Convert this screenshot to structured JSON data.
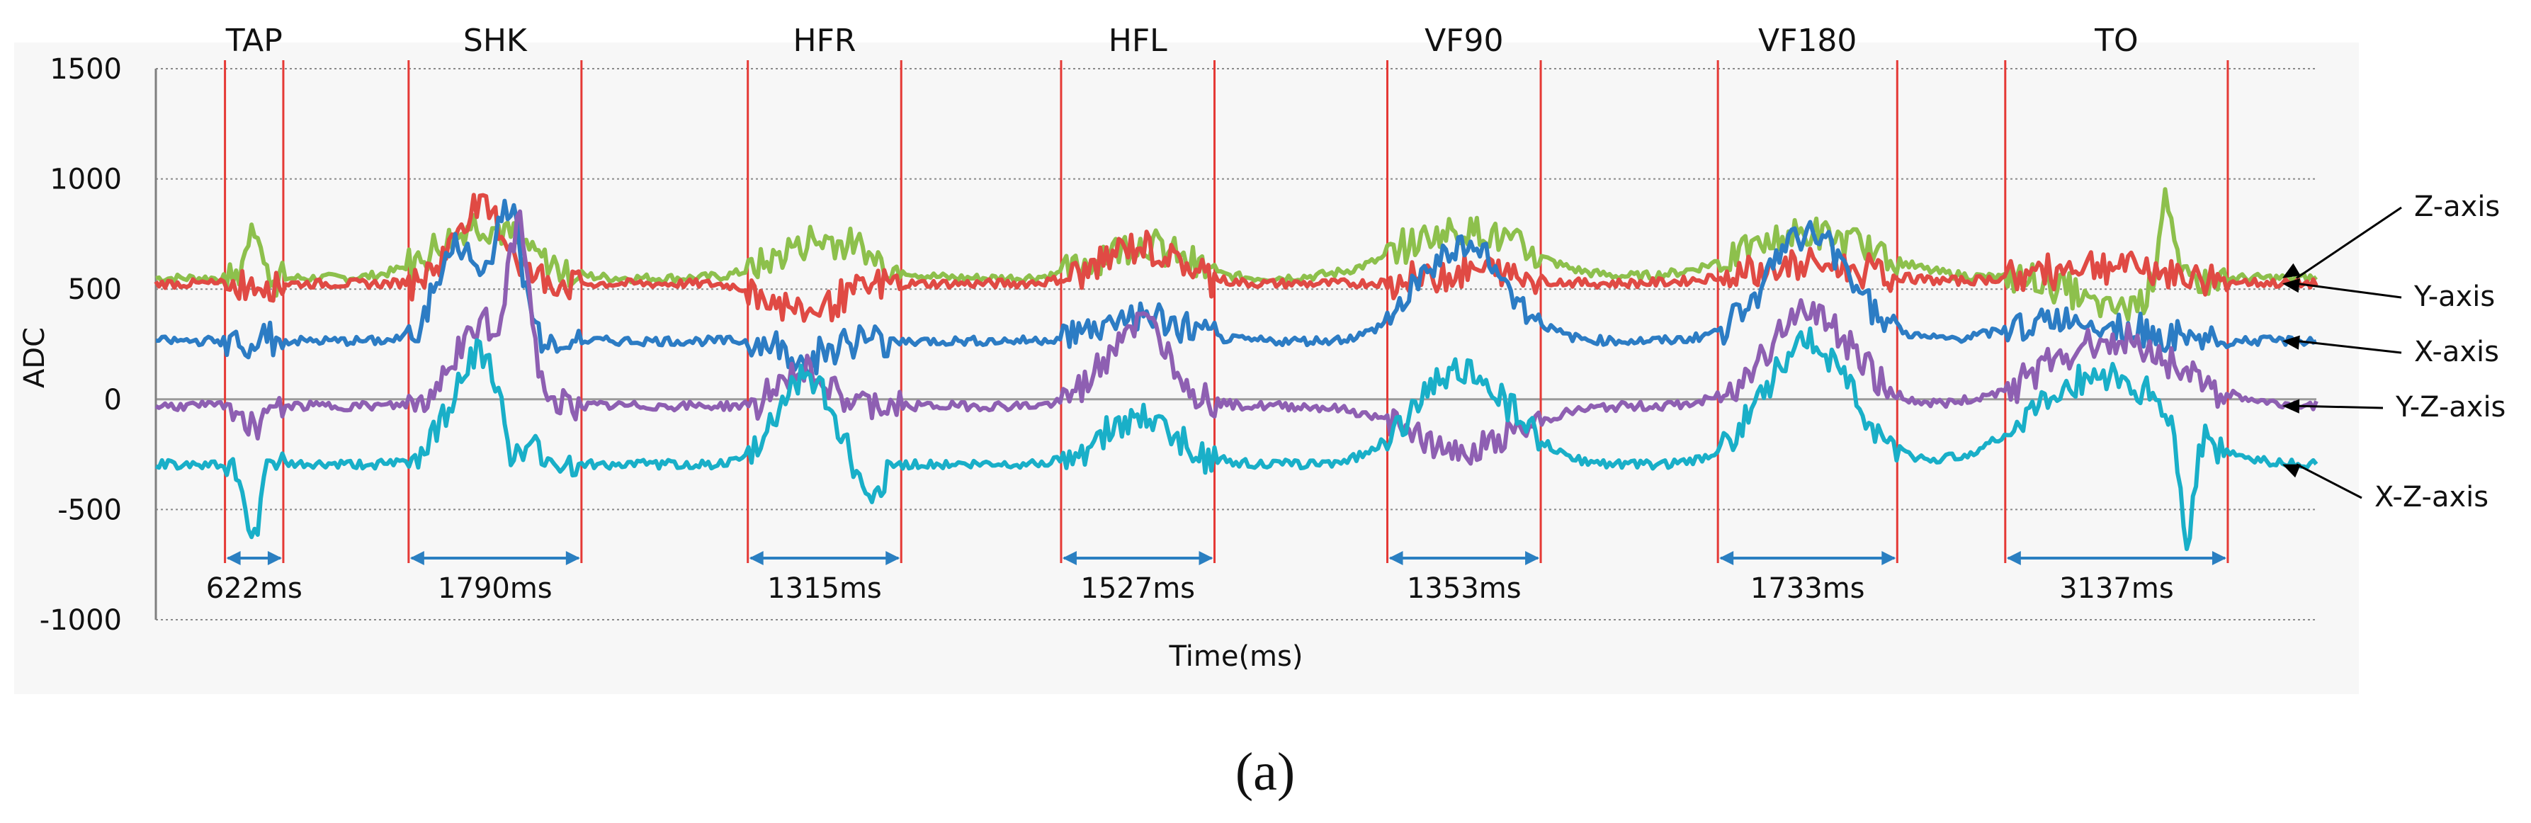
{
  "chart_data": {
    "type": "line",
    "title": "",
    "xlabel": "Time(ms)",
    "ylabel": "ADC",
    "ylim": [
      -1000,
      1500
    ],
    "yticks": [
      1500,
      1000,
      500,
      0,
      -500,
      -1000
    ],
    "grid": true,
    "gestures": [
      {
        "label": "TAP",
        "start": 0.032,
        "end": 0.059,
        "duration": "622ms"
      },
      {
        "label": "SHK",
        "start": 0.117,
        "end": 0.197,
        "duration": "1790ms"
      },
      {
        "label": "HFR",
        "start": 0.274,
        "end": 0.345,
        "duration": "1315ms"
      },
      {
        "label": "HFL",
        "start": 0.419,
        "end": 0.49,
        "duration": "1527ms"
      },
      {
        "label": "VF90",
        "start": 0.57,
        "end": 0.641,
        "duration": "1353ms"
      },
      {
        "label": "VF180",
        "start": 0.723,
        "end": 0.806,
        "duration": "1733ms"
      },
      {
        "label": "TO",
        "start": 0.856,
        "end": 0.959,
        "duration": "3137ms"
      }
    ],
    "series": [
      {
        "name": "Z-axis",
        "color": "#8dc04c",
        "baseline": 550
      },
      {
        "name": "Y-axis",
        "color": "#e04a44",
        "baseline": 525
      },
      {
        "name": "X-axis",
        "color": "#2c7cc4",
        "baseline": 265
      },
      {
        "name": "Y-Z-axis",
        "color": "#8e5fb2",
        "baseline": -30
      },
      {
        "name": "X-Z-axis",
        "color": "#19afc8",
        "baseline": -295
      }
    ]
  },
  "caption": "(a)"
}
